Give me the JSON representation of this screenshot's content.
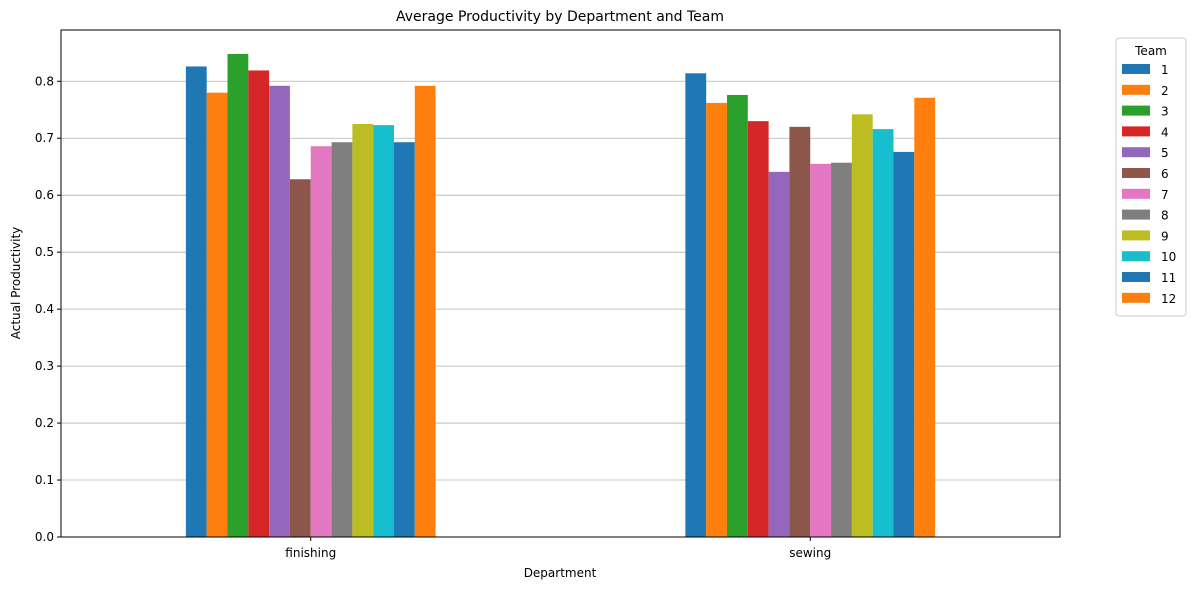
{
  "chart_data": {
    "type": "bar",
    "title": "Average Productivity by Department and Team",
    "xlabel": "Department",
    "ylabel": "Actual Productivity",
    "categories": [
      "finishing",
      "sewing"
    ],
    "ylim": [
      0,
      0.89
    ],
    "yticks": [
      "0.0",
      "0.1",
      "0.2",
      "0.3",
      "0.4",
      "0.5",
      "0.6",
      "0.7",
      "0.8"
    ],
    "ytick_values": [
      0,
      0.1,
      0.2,
      0.3,
      0.4,
      0.5,
      0.6,
      0.7,
      0.8
    ],
    "grid": "horizontal",
    "legend": {
      "title": "Team",
      "placement": "outside-right"
    },
    "series": [
      {
        "name": "1",
        "color": "#1f77b4",
        "values": [
          0.826,
          0.814
        ]
      },
      {
        "name": "2",
        "color": "#ff7f0e",
        "values": [
          0.78,
          0.762
        ]
      },
      {
        "name": "3",
        "color": "#2ca02c",
        "values": [
          0.848,
          0.776
        ]
      },
      {
        "name": "4",
        "color": "#d62728",
        "values": [
          0.819,
          0.73
        ]
      },
      {
        "name": "5",
        "color": "#9467bd",
        "values": [
          0.792,
          0.641
        ]
      },
      {
        "name": "6",
        "color": "#8c564b",
        "values": [
          0.628,
          0.72
        ]
      },
      {
        "name": "7",
        "color": "#e377c2",
        "values": [
          0.686,
          0.655
        ]
      },
      {
        "name": "8",
        "color": "#7f7f7f",
        "values": [
          0.693,
          0.657
        ]
      },
      {
        "name": "9",
        "color": "#bcbd22",
        "values": [
          0.725,
          0.742
        ]
      },
      {
        "name": "10",
        "color": "#17becf",
        "values": [
          0.723,
          0.716
        ]
      },
      {
        "name": "11",
        "color": "#1f77b4",
        "values": [
          0.693,
          0.676
        ]
      },
      {
        "name": "12",
        "color": "#ff7f0e",
        "values": [
          0.792,
          0.771
        ]
      }
    ]
  }
}
